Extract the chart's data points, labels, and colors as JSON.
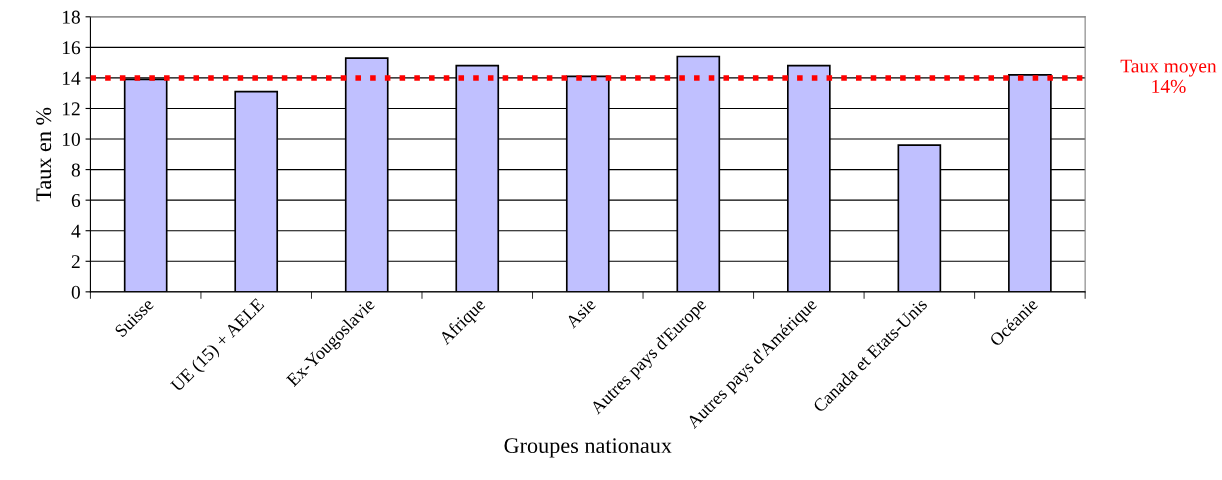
{
  "chart_data": {
    "type": "bar",
    "xlabel": "Groupes nationaux",
    "ylabel": "Taux en %",
    "categories": [
      "Suisse",
      "UE (15) + AELE",
      "Ex-Yougoslavie",
      "Afrique",
      "Asie",
      "Autres pays d'Europe",
      "Autres pays d'Amérique",
      "Canada et Etats-Unis",
      "Océanie"
    ],
    "values": [
      13.9,
      13.1,
      15.3,
      14.8,
      14.1,
      15.4,
      14.8,
      9.6,
      14.2
    ],
    "color": "#c0c0ff",
    "ylim": [
      0,
      18
    ],
    "yticks": [
      0,
      2,
      4,
      6,
      8,
      10,
      12,
      14,
      16,
      18
    ],
    "grid": "y",
    "ref_lines": [
      {
        "axis": "y",
        "value": 14,
        "label": "Taux moyen\n14%",
        "color": "#ff0000",
        "line_style": "dotted"
      }
    ]
  }
}
